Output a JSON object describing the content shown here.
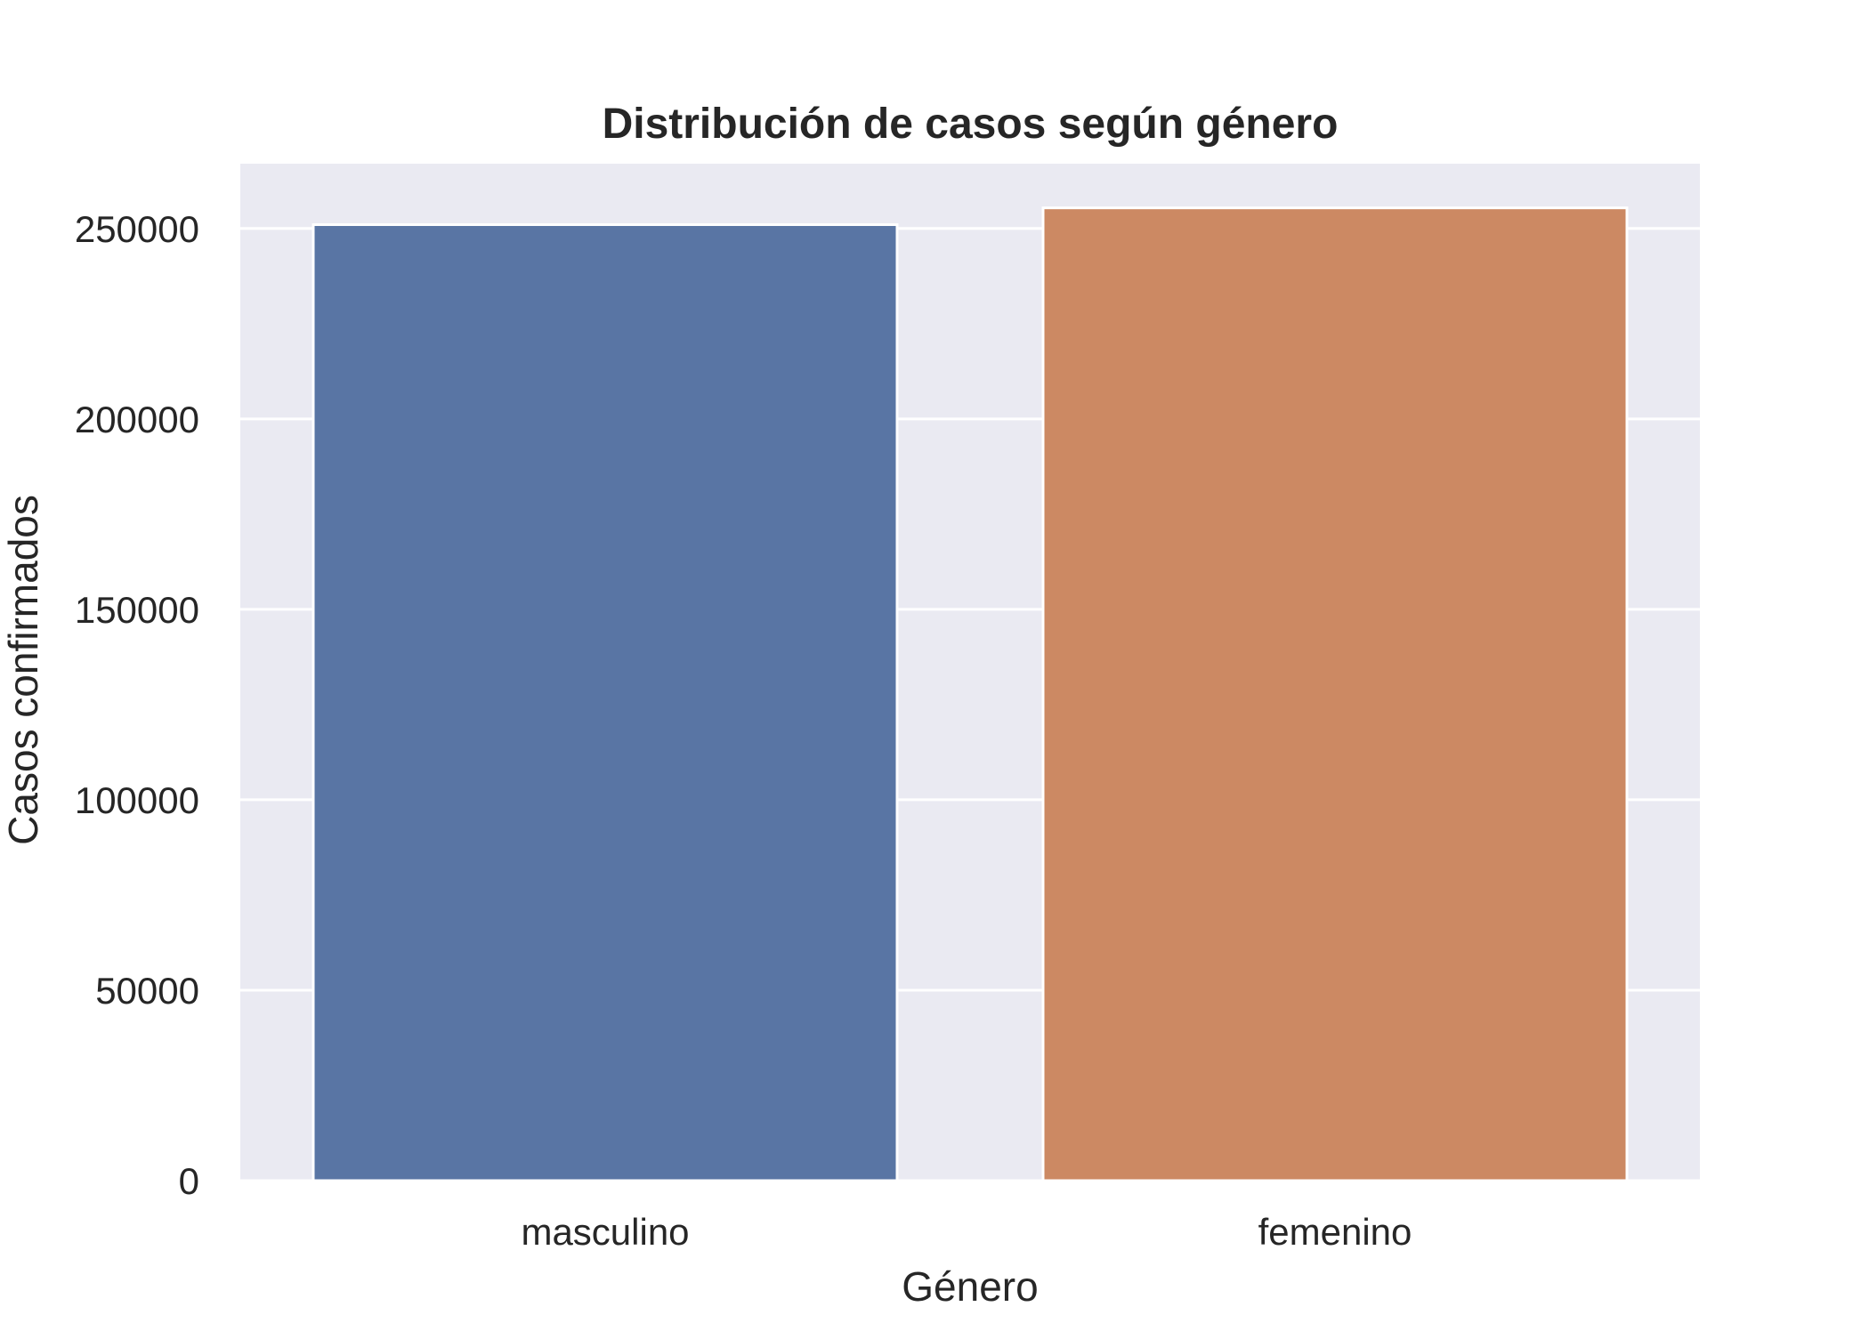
{
  "chart_data": {
    "type": "bar",
    "title": "Distribución de casos según género",
    "xlabel": "Género",
    "ylabel": "Casos confirmados",
    "categories": [
      "masculino",
      "femenino"
    ],
    "values": [
      251000,
      255400
    ],
    "colors": [
      "#5975a4",
      "#cc8963"
    ],
    "ylim": [
      0,
      267000
    ],
    "yticks": [
      0,
      50000,
      100000,
      150000,
      200000,
      250000
    ],
    "ytick_labels": [
      "0",
      "50000",
      "100000",
      "150000",
      "200000",
      "250000"
    ],
    "grid": true,
    "legend": "none",
    "background_color": "#eaeaf2",
    "grid_color": "#ffffff"
  }
}
